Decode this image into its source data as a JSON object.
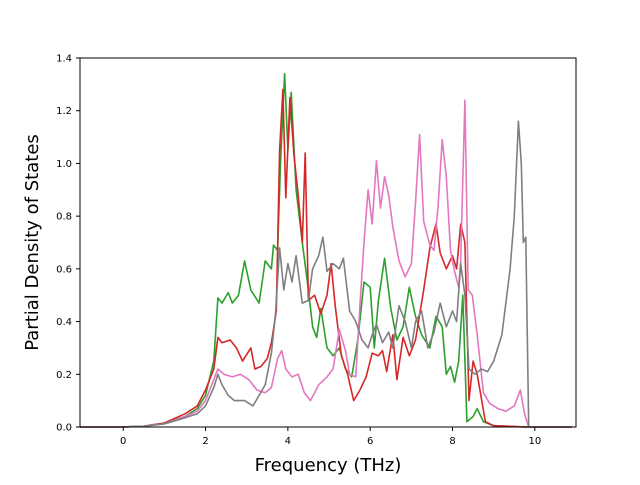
{
  "chart_data": {
    "type": "line",
    "title": "",
    "xlabel": "Frequency (THz)",
    "ylabel": "Partial Density of States",
    "xlim": [
      -1.05,
      11.0
    ],
    "ylim": [
      0,
      1.4
    ],
    "xticks": [
      0,
      2,
      4,
      6,
      8,
      10
    ],
    "yticks": [
      0.0,
      0.2,
      0.4,
      0.6,
      0.8,
      1.0,
      1.2,
      1.4
    ],
    "grid": false,
    "legend": "none",
    "series": [
      {
        "color": "#2ca02c",
        "points": [
          [
            -1.05,
            0
          ],
          [
            0,
            0
          ],
          [
            0.5,
            0.003
          ],
          [
            1.0,
            0.015
          ],
          [
            1.5,
            0.04
          ],
          [
            1.8,
            0.07
          ],
          [
            2.0,
            0.12
          ],
          [
            2.2,
            0.25
          ],
          [
            2.3,
            0.49
          ],
          [
            2.4,
            0.47
          ],
          [
            2.55,
            0.51
          ],
          [
            2.65,
            0.47
          ],
          [
            2.8,
            0.5
          ],
          [
            2.95,
            0.63
          ],
          [
            3.1,
            0.52
          ],
          [
            3.3,
            0.47
          ],
          [
            3.45,
            0.63
          ],
          [
            3.6,
            0.6
          ],
          [
            3.65,
            0.69
          ],
          [
            3.75,
            0.67
          ],
          [
            3.82,
            1.0
          ],
          [
            3.92,
            1.34
          ],
          [
            4.0,
            1.05
          ],
          [
            4.08,
            1.27
          ],
          [
            4.2,
            0.9
          ],
          [
            4.35,
            0.7
          ],
          [
            4.5,
            0.52
          ],
          [
            4.6,
            0.38
          ],
          [
            4.7,
            0.34
          ],
          [
            4.8,
            0.45
          ],
          [
            4.95,
            0.3
          ],
          [
            5.1,
            0.27
          ],
          [
            5.25,
            0.3
          ],
          [
            5.4,
            0.22
          ],
          [
            5.55,
            0.19
          ],
          [
            5.7,
            0.33
          ],
          [
            5.85,
            0.55
          ],
          [
            6.0,
            0.53
          ],
          [
            6.1,
            0.3
          ],
          [
            6.2,
            0.48
          ],
          [
            6.35,
            0.64
          ],
          [
            6.5,
            0.45
          ],
          [
            6.65,
            0.33
          ],
          [
            6.8,
            0.38
          ],
          [
            6.95,
            0.53
          ],
          [
            7.1,
            0.42
          ],
          [
            7.25,
            0.35
          ],
          [
            7.45,
            0.3
          ],
          [
            7.6,
            0.42
          ],
          [
            7.75,
            0.38
          ],
          [
            7.85,
            0.2
          ],
          [
            7.95,
            0.23
          ],
          [
            8.05,
            0.17
          ],
          [
            8.15,
            0.25
          ],
          [
            8.25,
            0.5
          ],
          [
            8.35,
            0.02
          ],
          [
            8.5,
            0.04
          ],
          [
            8.6,
            0.07
          ],
          [
            8.75,
            0.02
          ],
          [
            9.0,
            0.005
          ],
          [
            9.8,
            0
          ],
          [
            10.9,
            0
          ]
        ]
      },
      {
        "color": "#d62728",
        "points": [
          [
            -1.05,
            0
          ],
          [
            0,
            0
          ],
          [
            0.5,
            0.003
          ],
          [
            1.0,
            0.015
          ],
          [
            1.5,
            0.05
          ],
          [
            1.8,
            0.08
          ],
          [
            2.0,
            0.14
          ],
          [
            2.2,
            0.22
          ],
          [
            2.3,
            0.34
          ],
          [
            2.4,
            0.32
          ],
          [
            2.6,
            0.33
          ],
          [
            2.75,
            0.3
          ],
          [
            2.9,
            0.25
          ],
          [
            3.1,
            0.3
          ],
          [
            3.2,
            0.22
          ],
          [
            3.35,
            0.23
          ],
          [
            3.5,
            0.26
          ],
          [
            3.6,
            0.32
          ],
          [
            3.72,
            0.44
          ],
          [
            3.8,
            1.05
          ],
          [
            3.88,
            1.28
          ],
          [
            3.95,
            0.87
          ],
          [
            4.05,
            1.25
          ],
          [
            4.15,
            1.03
          ],
          [
            4.25,
            0.88
          ],
          [
            4.35,
            0.7
          ],
          [
            4.42,
            1.04
          ],
          [
            4.5,
            0.48
          ],
          [
            4.65,
            0.5
          ],
          [
            4.8,
            0.43
          ],
          [
            4.95,
            0.5
          ],
          [
            5.05,
            0.62
          ],
          [
            5.15,
            0.46
          ],
          [
            5.3,
            0.27
          ],
          [
            5.45,
            0.2
          ],
          [
            5.6,
            0.1
          ],
          [
            5.75,
            0.14
          ],
          [
            5.9,
            0.19
          ],
          [
            6.05,
            0.28
          ],
          [
            6.2,
            0.27
          ],
          [
            6.3,
            0.29
          ],
          [
            6.4,
            0.21
          ],
          [
            6.55,
            0.35
          ],
          [
            6.65,
            0.18
          ],
          [
            6.8,
            0.34
          ],
          [
            6.95,
            0.27
          ],
          [
            7.1,
            0.33
          ],
          [
            7.3,
            0.52
          ],
          [
            7.45,
            0.68
          ],
          [
            7.6,
            0.77
          ],
          [
            7.7,
            0.66
          ],
          [
            7.85,
            0.6
          ],
          [
            8.0,
            0.65
          ],
          [
            8.1,
            0.6
          ],
          [
            8.2,
            0.77
          ],
          [
            8.3,
            0.7
          ],
          [
            8.4,
            0.1
          ],
          [
            8.5,
            0.25
          ],
          [
            8.6,
            0.2
          ],
          [
            8.8,
            0.02
          ],
          [
            9.0,
            0.005
          ],
          [
            9.8,
            0
          ],
          [
            10.9,
            0
          ]
        ]
      },
      {
        "color": "#e377c2",
        "points": [
          [
            -1.05,
            0
          ],
          [
            0,
            0
          ],
          [
            0.5,
            0.003
          ],
          [
            1.0,
            0.012
          ],
          [
            1.5,
            0.04
          ],
          [
            1.8,
            0.06
          ],
          [
            2.0,
            0.1
          ],
          [
            2.2,
            0.18
          ],
          [
            2.3,
            0.22
          ],
          [
            2.45,
            0.2
          ],
          [
            2.65,
            0.19
          ],
          [
            2.85,
            0.2
          ],
          [
            3.05,
            0.18
          ],
          [
            3.25,
            0.14
          ],
          [
            3.45,
            0.13
          ],
          [
            3.6,
            0.15
          ],
          [
            3.75,
            0.26
          ],
          [
            3.85,
            0.29
          ],
          [
            3.95,
            0.22
          ],
          [
            4.1,
            0.19
          ],
          [
            4.25,
            0.2
          ],
          [
            4.4,
            0.13
          ],
          [
            4.55,
            0.1
          ],
          [
            4.75,
            0.16
          ],
          [
            4.95,
            0.19
          ],
          [
            5.1,
            0.22
          ],
          [
            5.25,
            0.37
          ],
          [
            5.4,
            0.29
          ],
          [
            5.5,
            0.2
          ],
          [
            5.65,
            0.19
          ],
          [
            5.75,
            0.46
          ],
          [
            5.85,
            0.7
          ],
          [
            5.95,
            0.9
          ],
          [
            6.05,
            0.77
          ],
          [
            6.15,
            1.01
          ],
          [
            6.25,
            0.83
          ],
          [
            6.35,
            0.95
          ],
          [
            6.45,
            0.88
          ],
          [
            6.55,
            0.76
          ],
          [
            6.7,
            0.63
          ],
          [
            6.85,
            0.57
          ],
          [
            7.0,
            0.62
          ],
          [
            7.1,
            0.85
          ],
          [
            7.2,
            1.11
          ],
          [
            7.3,
            0.78
          ],
          [
            7.45,
            0.69
          ],
          [
            7.55,
            0.67
          ],
          [
            7.65,
            0.84
          ],
          [
            7.75,
            1.09
          ],
          [
            7.85,
            0.95
          ],
          [
            7.95,
            0.67
          ],
          [
            8.05,
            0.59
          ],
          [
            8.15,
            0.53
          ],
          [
            8.2,
            0.63
          ],
          [
            8.3,
            1.24
          ],
          [
            8.38,
            0.52
          ],
          [
            8.48,
            0.5
          ],
          [
            8.6,
            0.35
          ],
          [
            8.75,
            0.13
          ],
          [
            8.9,
            0.09
          ],
          [
            9.1,
            0.07
          ],
          [
            9.3,
            0.06
          ],
          [
            9.5,
            0.08
          ],
          [
            9.65,
            0.14
          ],
          [
            9.75,
            0.05
          ],
          [
            9.85,
            0
          ],
          [
            10.9,
            0
          ]
        ]
      },
      {
        "color": "#7f7f7f",
        "points": [
          [
            -1.05,
            0
          ],
          [
            0,
            0
          ],
          [
            0.5,
            0.003
          ],
          [
            1.0,
            0.012
          ],
          [
            1.5,
            0.035
          ],
          [
            1.8,
            0.05
          ],
          [
            2.0,
            0.08
          ],
          [
            2.2,
            0.15
          ],
          [
            2.3,
            0.2
          ],
          [
            2.4,
            0.16
          ],
          [
            2.55,
            0.12
          ],
          [
            2.7,
            0.1
          ],
          [
            2.95,
            0.1
          ],
          [
            3.15,
            0.08
          ],
          [
            3.3,
            0.12
          ],
          [
            3.45,
            0.16
          ],
          [
            3.6,
            0.28
          ],
          [
            3.7,
            0.43
          ],
          [
            3.8,
            0.68
          ],
          [
            3.9,
            0.52
          ],
          [
            4.0,
            0.62
          ],
          [
            4.1,
            0.55
          ],
          [
            4.2,
            0.65
          ],
          [
            4.35,
            0.47
          ],
          [
            4.5,
            0.48
          ],
          [
            4.6,
            0.6
          ],
          [
            4.75,
            0.65
          ],
          [
            4.85,
            0.72
          ],
          [
            4.95,
            0.59
          ],
          [
            5.1,
            0.62
          ],
          [
            5.25,
            0.6
          ],
          [
            5.35,
            0.64
          ],
          [
            5.5,
            0.44
          ],
          [
            5.65,
            0.4
          ],
          [
            5.8,
            0.33
          ],
          [
            5.95,
            0.3
          ],
          [
            6.05,
            0.35
          ],
          [
            6.15,
            0.39
          ],
          [
            6.3,
            0.32
          ],
          [
            6.45,
            0.36
          ],
          [
            6.55,
            0.3
          ],
          [
            6.7,
            0.46
          ],
          [
            6.85,
            0.4
          ],
          [
            7.0,
            0.3
          ],
          [
            7.1,
            0.4
          ],
          [
            7.25,
            0.44
          ],
          [
            7.4,
            0.3
          ],
          [
            7.55,
            0.36
          ],
          [
            7.7,
            0.47
          ],
          [
            7.85,
            0.38
          ],
          [
            8.0,
            0.44
          ],
          [
            8.1,
            0.4
          ],
          [
            8.2,
            0.62
          ],
          [
            8.3,
            0.5
          ],
          [
            8.4,
            0.22
          ],
          [
            8.55,
            0.2
          ],
          [
            8.7,
            0.22
          ],
          [
            8.85,
            0.21
          ],
          [
            9.0,
            0.25
          ],
          [
            9.2,
            0.35
          ],
          [
            9.4,
            0.6
          ],
          [
            9.5,
            0.8
          ],
          [
            9.6,
            1.16
          ],
          [
            9.67,
            1.0
          ],
          [
            9.72,
            0.7
          ],
          [
            9.78,
            0.72
          ],
          [
            9.85,
            0
          ],
          [
            10.9,
            0
          ]
        ]
      }
    ]
  }
}
